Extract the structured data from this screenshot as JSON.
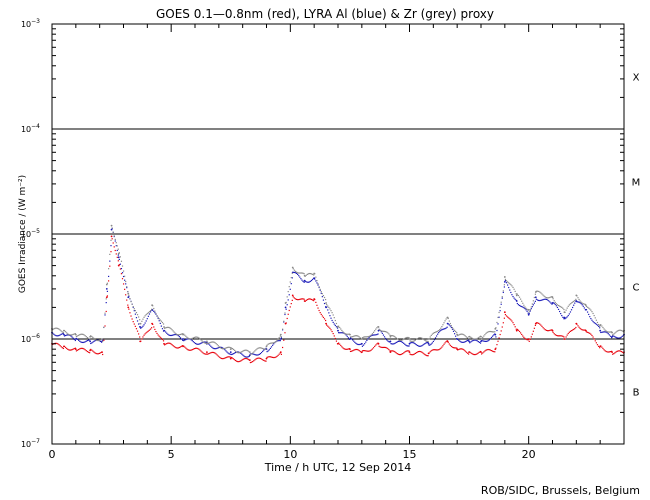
{
  "chart_data": {
    "type": "scatter",
    "title": "GOES 0.1—0.8nm (red), LYRA Al (blue) & Zr (grey) proxy",
    "xlabel": "Time / h UTC, 12 Sep 2014",
    "ylabel": "GOES Irradiance / (W m⁻²)",
    "xlim": [
      0,
      24
    ],
    "ylim": [
      1e-07,
      0.001
    ],
    "yscale": "log",
    "xticks": [
      {
        "value": 0,
        "label": "0"
      },
      {
        "value": 5,
        "label": "5"
      },
      {
        "value": 10,
        "label": "10"
      },
      {
        "value": 15,
        "label": "15"
      },
      {
        "value": 20,
        "label": "20"
      }
    ],
    "yticks": [
      {
        "exp": -7,
        "base": "10",
        "sup": "−7"
      },
      {
        "exp": -6,
        "base": "10",
        "sup": "−6"
      },
      {
        "exp": -5,
        "base": "10",
        "sup": "−5"
      },
      {
        "exp": -4,
        "base": "10",
        "sup": "−4"
      },
      {
        "exp": -3,
        "base": "10",
        "sup": "−3"
      }
    ],
    "class_thresholds": [
      1e-06,
      1e-05,
      0.0001
    ],
    "flare_classes": [
      {
        "label": "B",
        "log_center": -6.5
      },
      {
        "label": "C",
        "log_center": -5.5
      },
      {
        "label": "M",
        "log_center": -4.5
      },
      {
        "label": "X",
        "log_center": -3.5
      }
    ],
    "series": [
      {
        "name": "GOES 0.1-0.8nm",
        "color": "#e8000b",
        "points": [
          [
            0.0,
            9e-07
          ],
          [
            0.5,
            8.5e-07
          ],
          [
            1.0,
            8e-07
          ],
          [
            1.6,
            7.8e-07
          ],
          [
            2.1,
            7.5e-07
          ],
          [
            2.3,
            2.5e-06
          ],
          [
            2.5,
            9.5e-06
          ],
          [
            2.8,
            5e-06
          ],
          [
            3.2,
            2e-06
          ],
          [
            3.7,
            9.5e-07
          ],
          [
            4.2,
            1.4e-06
          ],
          [
            4.7,
            9e-07
          ],
          [
            5.5,
            8.5e-07
          ],
          [
            6.5,
            7.5e-07
          ],
          [
            7.5,
            6.5e-07
          ],
          [
            8.3,
            6.3e-07
          ],
          [
            9.0,
            6.5e-07
          ],
          [
            9.6,
            7.5e-07
          ],
          [
            9.8,
            1.4e-06
          ],
          [
            10.1,
            2.6e-06
          ],
          [
            10.6,
            2.3e-06
          ],
          [
            11.0,
            2.4e-06
          ],
          [
            11.5,
            1.4e-06
          ],
          [
            12.0,
            9e-07
          ],
          [
            12.5,
            8e-07
          ],
          [
            13.0,
            7.5e-07
          ],
          [
            13.7,
            9e-07
          ],
          [
            14.2,
            7.5e-07
          ],
          [
            15.0,
            7.5e-07
          ],
          [
            15.8,
            7.3e-07
          ],
          [
            16.6,
            9.5e-07
          ],
          [
            17.0,
            8e-07
          ],
          [
            17.5,
            7.5e-07
          ],
          [
            18.0,
            7.5e-07
          ],
          [
            18.6,
            8e-07
          ],
          [
            19.0,
            1.8e-06
          ],
          [
            19.5,
            1.2e-06
          ],
          [
            20.0,
            1e-06
          ],
          [
            20.3,
            1.4e-06
          ],
          [
            21.0,
            1.2e-06
          ],
          [
            21.5,
            1e-06
          ],
          [
            22.0,
            1.4e-06
          ],
          [
            22.4,
            1.2e-06
          ],
          [
            23.0,
            8.5e-07
          ],
          [
            23.5,
            7.5e-07
          ],
          [
            24.0,
            7.5e-07
          ]
        ]
      },
      {
        "name": "LYRA Al proxy",
        "color": "#1a1ab8",
        "points": [
          [
            0.0,
            1.15e-06
          ],
          [
            0.5,
            1.1e-06
          ],
          [
            1.0,
            1e-06
          ],
          [
            1.6,
            9.5e-07
          ],
          [
            2.1,
            9.5e-07
          ],
          [
            2.3,
            3e-06
          ],
          [
            2.5,
            1.1e-05
          ],
          [
            2.8,
            6e-06
          ],
          [
            3.2,
            2.5e-06
          ],
          [
            3.7,
            1.3e-06
          ],
          [
            4.2,
            1.9e-06
          ],
          [
            4.7,
            1.2e-06
          ],
          [
            5.5,
            1e-06
          ],
          [
            6.5,
            9e-07
          ],
          [
            7.5,
            7.5e-07
          ],
          [
            8.3,
            7e-07
          ],
          [
            9.0,
            8e-07
          ],
          [
            9.6,
            1e-06
          ],
          [
            9.8,
            2e-06
          ],
          [
            10.1,
            4.3e-06
          ],
          [
            10.6,
            3.6e-06
          ],
          [
            11.0,
            3.8e-06
          ],
          [
            11.5,
            2e-06
          ],
          [
            12.0,
            1.2e-06
          ],
          [
            12.5,
            1e-06
          ],
          [
            13.0,
            9e-07
          ],
          [
            13.7,
            1.2e-06
          ],
          [
            14.2,
            9.5e-07
          ],
          [
            15.0,
            9e-07
          ],
          [
            15.8,
            9e-07
          ],
          [
            16.6,
            1.4e-06
          ],
          [
            17.0,
            1e-06
          ],
          [
            17.5,
            9.5e-07
          ],
          [
            18.0,
            9.5e-07
          ],
          [
            18.6,
            1.1e-06
          ],
          [
            19.0,
            3.5e-06
          ],
          [
            19.5,
            2.3e-06
          ],
          [
            20.0,
            1.7e-06
          ],
          [
            20.3,
            2.5e-06
          ],
          [
            21.0,
            2.2e-06
          ],
          [
            21.5,
            1.6e-06
          ],
          [
            22.0,
            2.3e-06
          ],
          [
            22.4,
            1.9e-06
          ],
          [
            23.0,
            1.2e-06
          ],
          [
            23.5,
            1.05e-06
          ],
          [
            24.0,
            1.1e-06
          ]
        ]
      },
      {
        "name": "LYRA Zr proxy",
        "color": "#8a8a8a",
        "points": [
          [
            0.0,
            1.25e-06
          ],
          [
            0.5,
            1.2e-06
          ],
          [
            1.0,
            1.1e-06
          ],
          [
            1.6,
            1.05e-06
          ],
          [
            2.1,
            1e-06
          ],
          [
            2.3,
            3.3e-06
          ],
          [
            2.5,
            1.2e-05
          ],
          [
            2.8,
            6.5e-06
          ],
          [
            3.2,
            2.7e-06
          ],
          [
            3.7,
            1.4e-06
          ],
          [
            4.2,
            2.1e-06
          ],
          [
            4.7,
            1.3e-06
          ],
          [
            5.5,
            1.1e-06
          ],
          [
            6.5,
            9.5e-07
          ],
          [
            7.5,
            8e-07
          ],
          [
            8.3,
            7.5e-07
          ],
          [
            9.0,
            8.5e-07
          ],
          [
            9.6,
            1.1e-06
          ],
          [
            9.8,
            2.2e-06
          ],
          [
            10.1,
            4.8e-06
          ],
          [
            10.6,
            4e-06
          ],
          [
            11.0,
            4.2e-06
          ],
          [
            11.5,
            2.2e-06
          ],
          [
            12.0,
            1.3e-06
          ],
          [
            12.5,
            1.1e-06
          ],
          [
            13.0,
            1e-06
          ],
          [
            13.7,
            1.3e-06
          ],
          [
            14.2,
            1.05e-06
          ],
          [
            15.0,
            1e-06
          ],
          [
            15.8,
            1e-06
          ],
          [
            16.6,
            1.6e-06
          ],
          [
            17.0,
            1.1e-06
          ],
          [
            17.5,
            1.05e-06
          ],
          [
            18.0,
            1.05e-06
          ],
          [
            18.6,
            1.25e-06
          ],
          [
            19.0,
            3.9e-06
          ],
          [
            19.5,
            2.6e-06
          ],
          [
            20.0,
            1.9e-06
          ],
          [
            20.3,
            2.8e-06
          ],
          [
            21.0,
            2.5e-06
          ],
          [
            21.5,
            1.8e-06
          ],
          [
            22.0,
            2.6e-06
          ],
          [
            22.4,
            2.1e-06
          ],
          [
            23.0,
            1.35e-06
          ],
          [
            23.5,
            1.15e-06
          ],
          [
            24.0,
            1.2e-06
          ]
        ]
      }
    ],
    "credit": "ROB/SIDC, Brussels, Belgium"
  }
}
